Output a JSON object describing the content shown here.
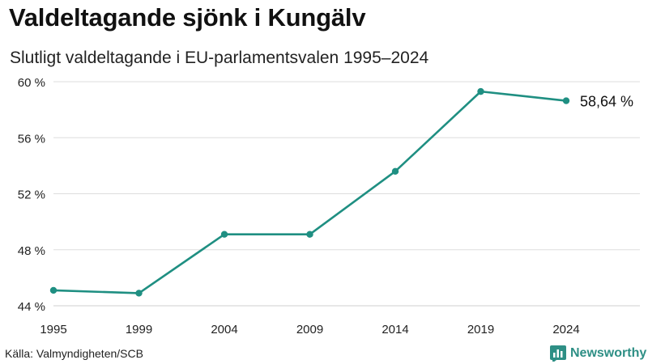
{
  "header": {
    "title": "Valdeltagande sjönk i Kungälv",
    "subtitle": "Slutligt valdeltagande i EU-parlamentsvalen 1995–2024"
  },
  "footer": {
    "source": "Källa: Valmyndigheten/SCB",
    "brand": "Newsworthy",
    "brand_icon": "bar-chart-logo-icon"
  },
  "colors": {
    "line": "#1f8f82",
    "grid": "#dddddd",
    "brand": "#2e8f85"
  },
  "chart_data": {
    "type": "line",
    "title": "Valdeltagande sjönk i Kungälv",
    "subtitle": "Slutligt valdeltagande i EU-parlamentsvalen 1995–2024",
    "x": [
      "1995",
      "1999",
      "2004",
      "2009",
      "2014",
      "2019",
      "2024"
    ],
    "values": [
      45.1,
      44.9,
      49.1,
      49.1,
      53.6,
      59.3,
      58.64
    ],
    "yticks": [
      "44 %",
      "48 %",
      "52 %",
      "56 %",
      "60 %"
    ],
    "ytick_values": [
      44,
      48,
      52,
      56,
      60
    ],
    "ylim": [
      44,
      60
    ],
    "end_label": "58,64 %",
    "grid": true,
    "legend": "none"
  }
}
